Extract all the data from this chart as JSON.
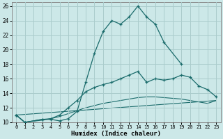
{
  "xlabel": "Humidex (Indice chaleur)",
  "background_color": "#cce8e8",
  "grid_color": "#aacccc",
  "line_color": "#1a6b6b",
  "xlim": [
    -0.5,
    23.5
  ],
  "ylim": [
    10,
    26.5
  ],
  "xtick_labels": [
    "0",
    "1",
    "2",
    "3",
    "4",
    "5",
    "6",
    "7",
    "8",
    "9",
    "10",
    "11",
    "12",
    "13",
    "14",
    "15",
    "16",
    "17",
    "18",
    "19",
    "20",
    "21",
    "22",
    "23"
  ],
  "ytick_labels": [
    "10",
    "12",
    "14",
    "16",
    "18",
    "20",
    "22",
    "24",
    "26"
  ],
  "ytick_vals": [
    10,
    12,
    14,
    16,
    18,
    20,
    22,
    24,
    26
  ],
  "line1_x": [
    0,
    1,
    3,
    4,
    5,
    6,
    7,
    8,
    9,
    10,
    11,
    12,
    13,
    14,
    15,
    16,
    17,
    19
  ],
  "line1_y": [
    11,
    10,
    10.4,
    10.4,
    10.2,
    10.5,
    11.5,
    15.5,
    19.5,
    22.5,
    24.0,
    23.5,
    24.5,
    26.0,
    24.5,
    23.5,
    21.0,
    18.0
  ],
  "line2_x": [
    0,
    1,
    3,
    4,
    5,
    6,
    7,
    8,
    9,
    10,
    11,
    12,
    13,
    14,
    15,
    16,
    17,
    18,
    19,
    20,
    21,
    22,
    23
  ],
  "line2_y": [
    11,
    10,
    10.4,
    10.5,
    11.0,
    12.0,
    13.0,
    14.2,
    14.8,
    15.2,
    15.5,
    16.0,
    16.5,
    17.0,
    15.5,
    16.0,
    15.8,
    16.0,
    16.5,
    16.2,
    15.0,
    14.5,
    13.5
  ],
  "line3_x": [
    0,
    1,
    3,
    4,
    5,
    6,
    7,
    8,
    9,
    10,
    11,
    12,
    13,
    14,
    15,
    16,
    17,
    18,
    19,
    20,
    21,
    22,
    23
  ],
  "line3_y": [
    11,
    10,
    10.3,
    10.5,
    10.8,
    11.2,
    11.6,
    12.0,
    12.3,
    12.6,
    12.8,
    13.0,
    13.2,
    13.4,
    13.5,
    13.5,
    13.4,
    13.3,
    13.2,
    13.0,
    12.8,
    12.6,
    13.0
  ],
  "line4_x": [
    0,
    23
  ],
  "line4_y": [
    11,
    13.0
  ]
}
